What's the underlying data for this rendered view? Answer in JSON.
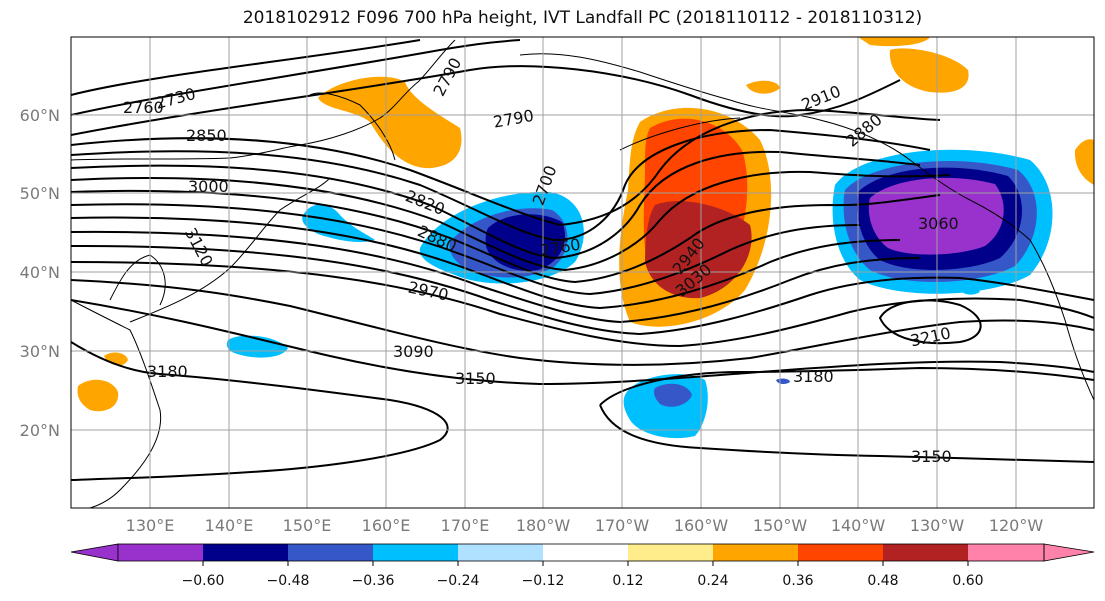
{
  "title": "2018102912 F096 700 hPa height, IVT Landfall PC (2018110112 - 2018110312)",
  "lat_labels": [
    "60°N",
    "50°N",
    "40°N",
    "30°N",
    "20°N"
  ],
  "lon_labels": [
    "130°E",
    "140°E",
    "150°E",
    "160°E",
    "170°E",
    "180°W",
    "170°W",
    "160°W",
    "150°W",
    "140°W",
    "130°W",
    "120°W"
  ],
  "colorbar": {
    "colors": [
      "#9932cc",
      "#00008b",
      "#3657c8",
      "#00bfff",
      "#b0e2ff",
      "#ffffff",
      "#ffec8b",
      "#ffa500",
      "#ff4500",
      "#b22222",
      "#ff82ab"
    ],
    "tick_labels": [
      "−0.60",
      "−0.48",
      "−0.36",
      "−0.24",
      "−0.12",
      "0.12",
      "0.24",
      "0.36",
      "0.48",
      "0.60"
    ]
  },
  "contour_labels": [
    "2760",
    "2730",
    "2790",
    "2850",
    "2790",
    "2910",
    "2880",
    "3000",
    "2820",
    "2700",
    "2760",
    "2880",
    "2940",
    "3030",
    "3060",
    "3120",
    "2970",
    "3090",
    "3150",
    "3210",
    "3180",
    "3180",
    "3150"
  ],
  "colors": {
    "contour": "#000000",
    "coast": "#000000",
    "grid": "#a0a0a0"
  }
}
